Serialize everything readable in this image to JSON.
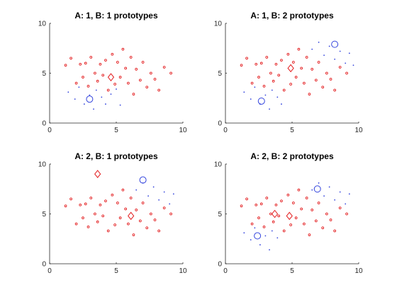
{
  "colors": {
    "A": "#e31a1c",
    "B": "#3344dd",
    "axis": "#262626",
    "title": "#000000"
  },
  "chart_data": [
    {
      "type": "scatter",
      "title": "A: 1, B: 1 prototypes",
      "xlim": [
        0,
        10
      ],
      "ylim": [
        0,
        10
      ],
      "xticks": [
        "0",
        "5",
        "10"
      ],
      "yticks": [
        "0",
        "5",
        "10"
      ],
      "series": [
        {
          "marker": "circle-small",
          "color": "#e31a1c",
          "points": [
            [
              1.2,
              5.8
            ],
            [
              1.6,
              6.5
            ],
            [
              2.0,
              4.0
            ],
            [
              2.3,
              5.9
            ],
            [
              2.5,
              4.6
            ],
            [
              2.7,
              6.0
            ],
            [
              2.9,
              3.7
            ],
            [
              3.1,
              6.6
            ],
            [
              3.4,
              5.0
            ],
            [
              3.6,
              4.2
            ],
            [
              3.8,
              5.9
            ],
            [
              4.0,
              4.8
            ],
            [
              4.2,
              6.3
            ],
            [
              4.4,
              3.3
            ],
            [
              4.7,
              6.9
            ],
            [
              4.9,
              3.9
            ],
            [
              5.1,
              6.1
            ],
            [
              5.3,
              4.6
            ],
            [
              5.5,
              7.4
            ],
            [
              5.7,
              5.5
            ],
            [
              5.9,
              4.0
            ],
            [
              6.1,
              6.6
            ],
            [
              6.3,
              2.9
            ],
            [
              6.5,
              5.4
            ],
            [
              6.8,
              4.3
            ],
            [
              7.0,
              6.1
            ],
            [
              7.3,
              3.6
            ],
            [
              7.6,
              5.0
            ],
            [
              7.9,
              4.4
            ],
            [
              8.2,
              3.3
            ],
            [
              8.6,
              5.6
            ],
            [
              9.1,
              5.0
            ]
          ]
        },
        {
          "marker": "dot",
          "color": "#3344dd",
          "points": [
            [
              1.4,
              3.1
            ],
            [
              1.9,
              2.4
            ],
            [
              2.2,
              3.6
            ],
            [
              2.6,
              1.9
            ],
            [
              3.0,
              2.8
            ],
            [
              3.3,
              1.4
            ],
            [
              3.5,
              3.3
            ],
            [
              3.9,
              2.6
            ],
            [
              4.2,
              1.9
            ],
            [
              4.6,
              2.9
            ],
            [
              5.0,
              3.4
            ],
            [
              5.3,
              1.8
            ]
          ]
        },
        {
          "marker": "prototype-circle",
          "color": "#3344dd",
          "points": [
            [
              3.0,
              2.4
            ]
          ]
        },
        {
          "marker": "prototype-diamond",
          "color": "#e31a1c",
          "points": [
            [
              4.6,
              4.6
            ]
          ]
        }
      ]
    },
    {
      "type": "scatter",
      "title": "A: 1, B: 2 prototypes",
      "xlim": [
        0,
        10
      ],
      "ylim": [
        0,
        10
      ],
      "xticks": [
        "0",
        "5",
        "10"
      ],
      "yticks": [
        "0",
        "5",
        "10"
      ],
      "series": [
        {
          "marker": "circle-small",
          "color": "#e31a1c",
          "points": [
            [
              1.2,
              5.8
            ],
            [
              1.6,
              6.5
            ],
            [
              2.0,
              4.0
            ],
            [
              2.3,
              5.9
            ],
            [
              2.5,
              4.6
            ],
            [
              2.7,
              6.0
            ],
            [
              2.9,
              3.7
            ],
            [
              3.1,
              6.6
            ],
            [
              3.4,
              5.0
            ],
            [
              3.6,
              4.2
            ],
            [
              3.8,
              5.9
            ],
            [
              4.0,
              4.8
            ],
            [
              4.2,
              6.3
            ],
            [
              4.4,
              3.3
            ],
            [
              4.7,
              6.9
            ],
            [
              4.9,
              3.9
            ],
            [
              5.1,
              6.1
            ],
            [
              5.3,
              4.6
            ],
            [
              5.5,
              7.4
            ],
            [
              5.7,
              5.5
            ],
            [
              5.9,
              4.0
            ],
            [
              6.1,
              6.6
            ],
            [
              6.3,
              2.9
            ],
            [
              6.5,
              5.4
            ],
            [
              6.8,
              4.3
            ],
            [
              7.0,
              6.1
            ],
            [
              7.3,
              3.6
            ],
            [
              7.6,
              5.0
            ],
            [
              7.9,
              4.4
            ],
            [
              8.2,
              3.3
            ],
            [
              8.6,
              5.6
            ],
            [
              9.1,
              5.0
            ]
          ]
        },
        {
          "marker": "dot",
          "color": "#3344dd",
          "points": [
            [
              1.4,
              3.1
            ],
            [
              1.9,
              2.4
            ],
            [
              2.2,
              3.6
            ],
            [
              2.6,
              1.9
            ],
            [
              3.0,
              2.8
            ],
            [
              3.3,
              1.4
            ],
            [
              3.5,
              3.3
            ],
            [
              3.9,
              2.6
            ],
            [
              4.2,
              1.9
            ],
            [
              6.5,
              7.4
            ],
            [
              7.0,
              8.1
            ],
            [
              7.4,
              6.8
            ],
            [
              7.8,
              7.7
            ],
            [
              8.2,
              6.4
            ],
            [
              8.6,
              7.2
            ],
            [
              9.0,
              6.0
            ],
            [
              9.3,
              7.0
            ],
            [
              9.6,
              5.8
            ]
          ]
        },
        {
          "marker": "prototype-circle",
          "color": "#3344dd",
          "points": [
            [
              2.7,
              2.2
            ],
            [
              8.2,
              7.9
            ]
          ]
        },
        {
          "marker": "prototype-diamond",
          "color": "#e31a1c",
          "points": [
            [
              4.9,
              5.5
            ]
          ]
        }
      ]
    },
    {
      "type": "scatter",
      "title": "A: 2, B: 1 prototypes",
      "xlim": [
        0,
        10
      ],
      "ylim": [
        0,
        10
      ],
      "xticks": [
        "0",
        "5",
        "10"
      ],
      "yticks": [
        "0",
        "5",
        "10"
      ],
      "series": [
        {
          "marker": "circle-small",
          "color": "#e31a1c",
          "points": [
            [
              1.2,
              5.8
            ],
            [
              1.6,
              6.5
            ],
            [
              2.0,
              4.0
            ],
            [
              2.3,
              5.9
            ],
            [
              2.5,
              4.6
            ],
            [
              2.7,
              6.0
            ],
            [
              2.9,
              3.7
            ],
            [
              3.1,
              6.6
            ],
            [
              3.4,
              5.0
            ],
            [
              3.6,
              4.2
            ],
            [
              3.8,
              5.9
            ],
            [
              4.0,
              4.8
            ],
            [
              4.2,
              6.3
            ],
            [
              4.4,
              3.3
            ],
            [
              4.7,
              6.9
            ],
            [
              4.9,
              3.9
            ],
            [
              5.1,
              6.1
            ],
            [
              5.3,
              4.6
            ],
            [
              5.5,
              7.4
            ],
            [
              5.7,
              5.5
            ],
            [
              5.9,
              4.0
            ],
            [
              6.1,
              6.6
            ],
            [
              6.3,
              2.9
            ],
            [
              6.5,
              5.4
            ],
            [
              6.8,
              4.3
            ],
            [
              7.0,
              6.1
            ],
            [
              7.3,
              3.6
            ],
            [
              7.6,
              5.0
            ],
            [
              7.9,
              4.4
            ],
            [
              8.2,
              3.3
            ],
            [
              8.6,
              5.6
            ],
            [
              9.1,
              5.0
            ]
          ]
        },
        {
          "marker": "dot",
          "color": "#3344dd",
          "points": [
            [
              6.5,
              7.4
            ],
            [
              7.0,
              8.1
            ],
            [
              7.4,
              6.8
            ],
            [
              7.8,
              7.7
            ],
            [
              8.2,
              6.4
            ],
            [
              8.6,
              7.2
            ],
            [
              9.0,
              6.0
            ],
            [
              9.3,
              7.0
            ]
          ]
        },
        {
          "marker": "prototype-circle",
          "color": "#3344dd",
          "points": [
            [
              7.0,
              8.4
            ]
          ]
        },
        {
          "marker": "prototype-diamond",
          "color": "#e31a1c",
          "points": [
            [
              3.6,
              9.0
            ],
            [
              6.1,
              4.8
            ]
          ]
        }
      ]
    },
    {
      "type": "scatter",
      "title": "A: 2, B: 2 prototypes",
      "xlim": [
        0,
        10
      ],
      "ylim": [
        0,
        10
      ],
      "xticks": [
        "0",
        "5",
        "10"
      ],
      "yticks": [
        "0",
        "5",
        "10"
      ],
      "series": [
        {
          "marker": "circle-small",
          "color": "#e31a1c",
          "points": [
            [
              1.2,
              5.8
            ],
            [
              1.6,
              6.5
            ],
            [
              2.0,
              4.0
            ],
            [
              2.3,
              5.9
            ],
            [
              2.5,
              4.6
            ],
            [
              2.7,
              6.0
            ],
            [
              2.9,
              3.7
            ],
            [
              3.1,
              6.6
            ],
            [
              3.4,
              5.0
            ],
            [
              3.6,
              4.2
            ],
            [
              3.8,
              5.9
            ],
            [
              4.0,
              4.8
            ],
            [
              4.2,
              6.3
            ],
            [
              4.4,
              3.3
            ],
            [
              4.7,
              6.9
            ],
            [
              4.9,
              3.9
            ],
            [
              5.1,
              6.1
            ],
            [
              5.3,
              4.6
            ],
            [
              5.5,
              7.4
            ],
            [
              5.7,
              5.5
            ],
            [
              5.9,
              4.0
            ],
            [
              6.1,
              6.6
            ],
            [
              6.3,
              2.9
            ],
            [
              6.5,
              5.4
            ],
            [
              6.8,
              4.3
            ],
            [
              7.0,
              6.1
            ],
            [
              7.3,
              3.6
            ],
            [
              7.6,
              5.0
            ],
            [
              7.9,
              4.4
            ],
            [
              8.2,
              3.3
            ],
            [
              8.6,
              5.6
            ],
            [
              9.1,
              5.0
            ]
          ]
        },
        {
          "marker": "dot",
          "color": "#3344dd",
          "points": [
            [
              1.4,
              3.1
            ],
            [
              1.9,
              2.4
            ],
            [
              2.2,
              3.6
            ],
            [
              2.6,
              1.9
            ],
            [
              3.0,
              2.8
            ],
            [
              3.3,
              1.4
            ],
            [
              3.5,
              3.3
            ],
            [
              3.9,
              2.6
            ],
            [
              6.5,
              7.4
            ],
            [
              7.0,
              8.1
            ],
            [
              7.4,
              6.8
            ],
            [
              7.8,
              7.7
            ],
            [
              8.2,
              6.4
            ],
            [
              8.6,
              7.2
            ],
            [
              9.0,
              6.0
            ],
            [
              9.3,
              7.0
            ]
          ]
        },
        {
          "marker": "prototype-circle",
          "color": "#3344dd",
          "points": [
            [
              2.4,
              2.8
            ],
            [
              6.9,
              7.5
            ]
          ]
        },
        {
          "marker": "prototype-diamond",
          "color": "#e31a1c",
          "points": [
            [
              3.7,
              5.0
            ],
            [
              4.8,
              4.8
            ]
          ]
        }
      ]
    }
  ]
}
